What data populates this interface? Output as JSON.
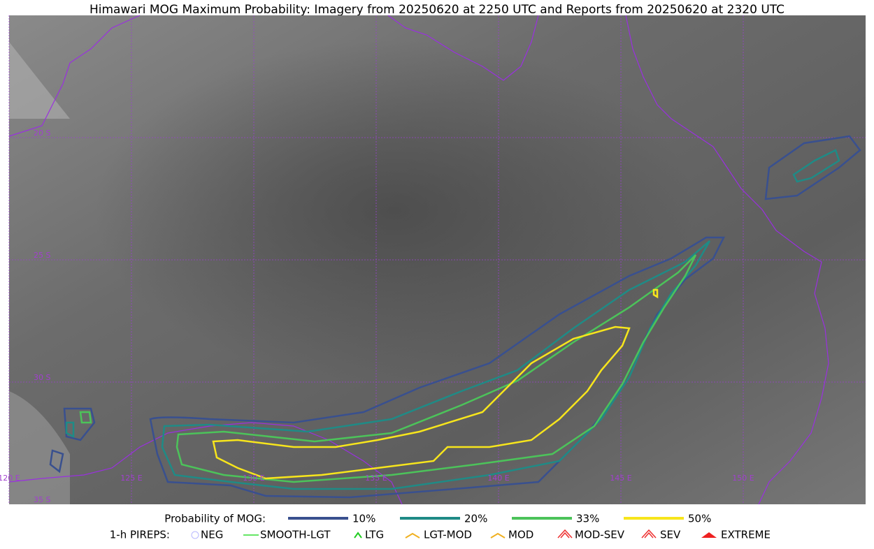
{
  "title": "Himawari MOG Maximum Probability: Imagery from 20250620 at 2250 UTC and Reports from 20250620 at 2320 UTC",
  "map": {
    "lat_labels": [
      "20 S",
      "25 S",
      "30 S",
      "35 S"
    ],
    "lon_labels": [
      "120 E",
      "125 E",
      "130 E",
      "135 E",
      "140 E",
      "145 E",
      "150 E"
    ]
  },
  "legend": {
    "probability": {
      "label": "Probability of MOG:",
      "items": [
        "10%",
        "20%",
        "33%",
        "50%"
      ]
    },
    "pireps": {
      "label": "1-h PIREPS:",
      "items": [
        "NEG",
        "SMOOTH-LGT",
        "LTG",
        "LGT-MOD",
        "MOD",
        "MOD-SEV",
        "SEV",
        "EXTREME"
      ]
    }
  }
}
